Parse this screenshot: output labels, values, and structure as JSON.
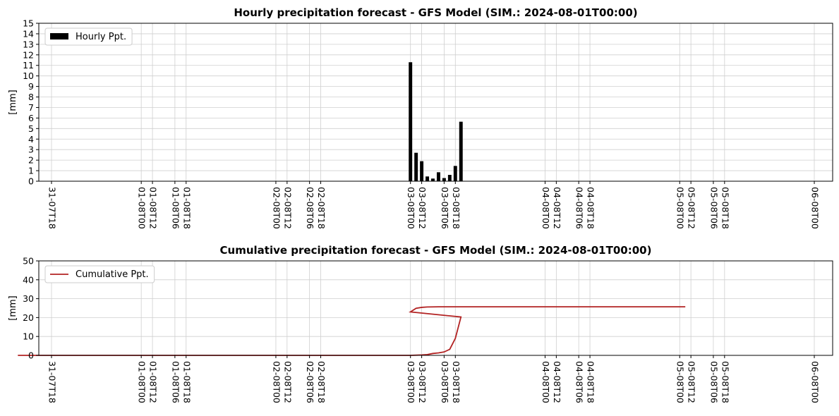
{
  "chart_data": [
    {
      "type": "bar",
      "title": "Hourly precipitation forecast - GFS Model (SIM.: 2024-08-01T00:00)",
      "xlabel": "",
      "ylabel": "[mm]",
      "ylim": [
        0,
        15
      ],
      "yticks": [
        0,
        1,
        2,
        3,
        4,
        5,
        6,
        7,
        8,
        9,
        10,
        11,
        12,
        13,
        14,
        15
      ],
      "xticks": [
        "31-07T18",
        "01-08T00",
        "01-08T06",
        "01-08T12",
        "01-08T18",
        "02-08T00",
        "02-08T06",
        "02-08T12",
        "02-08T18",
        "03-08T00",
        "03-08T06",
        "03-08T12",
        "03-08T18",
        "04-08T00",
        "04-08T06",
        "04-08T12",
        "04-08T18",
        "05-08T00",
        "05-08T06",
        "05-08T12",
        "05-08T18",
        "06-08T00"
      ],
      "grid": true,
      "legend": {
        "placement": "top-left",
        "entries": [
          "Hourly Ppt."
        ]
      },
      "series": [
        {
          "name": "Hourly Ppt.",
          "color": "#000000",
          "points": [
            [
              "03-08T03",
              0.15
            ],
            [
              "03-08T04",
              0.15
            ],
            [
              "03-08T05",
              0.85
            ],
            [
              "03-08T06",
              0.3
            ],
            [
              "03-08T07",
              0.6
            ],
            [
              "03-08T08",
              1.45
            ],
            [
              "03-08T09",
              5.65
            ],
            [
              "03-08T10",
              11.3
            ],
            [
              "03-08T11",
              2.7
            ],
            [
              "03-08T12",
              1.9
            ],
            [
              "03-08T13",
              0.45
            ],
            [
              "03-08T14",
              0.25
            ],
            [
              "03-08T15",
              0.1
            ],
            [
              "03-08T16",
              0.05
            ]
          ]
        }
      ]
    },
    {
      "type": "line",
      "title": "Cumulative precipitation forecast - GFS Model (SIM.: 2024-08-01T00:00)",
      "xlabel": "",
      "ylabel": "[mm]",
      "ylim": [
        0,
        50
      ],
      "yticks": [
        0,
        10,
        20,
        30,
        40,
        50
      ],
      "xticks": [
        "31-07T18",
        "01-08T00",
        "01-08T06",
        "01-08T12",
        "01-08T18",
        "02-08T00",
        "02-08T06",
        "02-08T12",
        "02-08T18",
        "03-08T00",
        "03-08T06",
        "03-08T12",
        "03-08T18",
        "04-08T00",
        "04-08T06",
        "04-08T12",
        "04-08T18",
        "05-08T00",
        "05-08T06",
        "05-08T12",
        "05-08T18",
        "06-08T00"
      ],
      "grid": true,
      "legend": {
        "placement": "top-left",
        "entries": [
          "Cumulative Ppt."
        ]
      },
      "series": [
        {
          "name": "Cumulative Ppt.",
          "color": "#b22222",
          "points": [
            [
              "31-07T22",
              0
            ],
            [
              "03-08T00",
              0
            ],
            [
              "03-08T02",
              0.2
            ],
            [
              "03-08T03",
              0.4
            ],
            [
              "03-08T04",
              1.0
            ],
            [
              "03-08T05",
              1.3
            ],
            [
              "03-08T06",
              1.8
            ],
            [
              "03-08T07",
              3.2
            ],
            [
              "03-08T08",
              9.0
            ],
            [
              "03-08T09",
              20.3
            ],
            [
              "03-08T10",
              23.0
            ],
            [
              "03-08T11",
              24.9
            ],
            [
              "03-08T12",
              25.4
            ],
            [
              "03-08T13",
              25.6
            ],
            [
              "03-08T15",
              25.7
            ],
            [
              "05-08T21",
              25.7
            ]
          ]
        }
      ]
    }
  ]
}
